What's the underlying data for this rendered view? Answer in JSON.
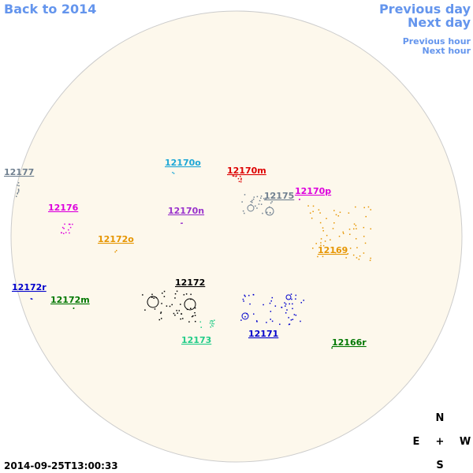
{
  "nav": {
    "back": "Back to 2014",
    "previous_day": "Previous day",
    "next_day": "Next day",
    "previous_hour": "Previous hour",
    "next_hour": "Next hour"
  },
  "regions": [
    {
      "label": "12177",
      "color": "#708090"
    },
    {
      "label": "12170o",
      "color": "#1ea7d6"
    },
    {
      "label": "12170m",
      "color": "#dd0000"
    },
    {
      "label": "12175",
      "color": "#708090"
    },
    {
      "label": "12170p",
      "color": "#dd00dd"
    },
    {
      "label": "12176",
      "color": "#dd00dd"
    },
    {
      "label": "12170n",
      "color": "#9932cc"
    },
    {
      "label": "12172o",
      "color": "#e69500"
    },
    {
      "label": "12169",
      "color": "#e69500"
    },
    {
      "label": "12172r",
      "color": "#0000cc"
    },
    {
      "label": "12172",
      "color": "#000000"
    },
    {
      "label": "12172m",
      "color": "#007700"
    },
    {
      "label": "12173",
      "color": "#22cc88"
    },
    {
      "label": "12171",
      "color": "#0000cc"
    },
    {
      "label": "12166r",
      "color": "#007700"
    }
  ],
  "compass": {
    "n": "N",
    "e": "E",
    "center": "+",
    "w": "W",
    "s": "S"
  },
  "timestamp": "2014-09-25T13:00:33"
}
